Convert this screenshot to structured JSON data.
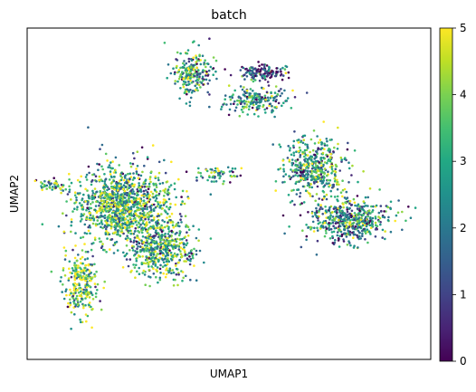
{
  "chart_data": {
    "type": "scatter",
    "title": "batch",
    "xlabel": "UMAP1",
    "ylabel": "UMAP2",
    "x_ticks_visible": false,
    "y_ticks_visible": false,
    "grid": false,
    "xlim": [
      -10,
      10
    ],
    "ylim": [
      -10,
      10
    ],
    "color_variable": "batch",
    "colormap": "viridis",
    "colorbar": {
      "placement": "right",
      "range": [
        0,
        5
      ],
      "ticks": [
        "0",
        "1",
        "2",
        "3",
        "4",
        "5"
      ],
      "colors": [
        "#440154",
        "#482475",
        "#414487",
        "#355f8d",
        "#2a788e",
        "#21918c",
        "#22a884",
        "#44bf70",
        "#7ad151",
        "#bddf26",
        "#fde725"
      ]
    },
    "clusters": [
      {
        "name": "left-large",
        "center": [
          -5.3,
          -0.6
        ],
        "spread": [
          1.6,
          1.5
        ],
        "n": 1100,
        "batch_mean": 3.2
      },
      {
        "name": "left-lower-tail",
        "center": [
          -7.3,
          -5.3
        ],
        "spread": [
          0.6,
          1.4
        ],
        "n": 260,
        "batch_mean": 3.6
      },
      {
        "name": "left-mid-lobe",
        "center": [
          -3.4,
          -3.3
        ],
        "spread": [
          1.1,
          1.2
        ],
        "n": 520,
        "batch_mean": 3.1
      },
      {
        "name": "left-arm",
        "center": [
          -8.7,
          0.5
        ],
        "spread": [
          0.6,
          0.25
        ],
        "n": 50,
        "batch_mean": 3.0
      },
      {
        "name": "top-cluster",
        "center": [
          -1.8,
          7.2
        ],
        "spread": [
          0.6,
          1.0
        ],
        "n": 230,
        "batch_mean": 2.8
      },
      {
        "name": "top-right-dark",
        "center": [
          1.6,
          7.3
        ],
        "spread": [
          0.9,
          0.3
        ],
        "n": 140,
        "batch_mean": 1.0
      },
      {
        "name": "top-right-green",
        "center": [
          1.4,
          5.6
        ],
        "spread": [
          1.0,
          0.5
        ],
        "n": 200,
        "batch_mean": 2.3
      },
      {
        "name": "bridge",
        "center": [
          -0.5,
          1.2
        ],
        "spread": [
          0.8,
          0.4
        ],
        "n": 60,
        "batch_mean": 2.6
      },
      {
        "name": "right-upper",
        "center": [
          4.2,
          1.5
        ],
        "spread": [
          1.0,
          1.2
        ],
        "n": 460,
        "batch_mean": 3.0
      },
      {
        "name": "right-lower",
        "center": [
          6.0,
          -1.6
        ],
        "spread": [
          1.4,
          0.9
        ],
        "n": 520,
        "batch_mean": 2.4
      }
    ]
  }
}
